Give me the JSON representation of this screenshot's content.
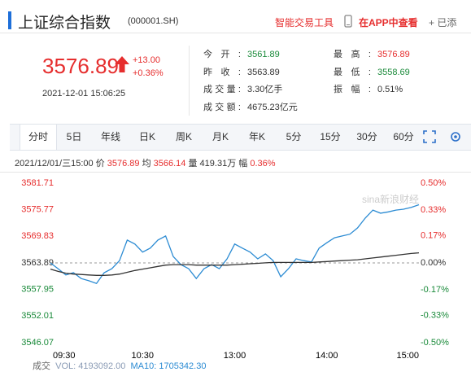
{
  "header": {
    "title": "上证综合指数",
    "code": "(000001.SH)",
    "tools": "智能交易工具",
    "app": "在APP中查看",
    "add": "+ 已添"
  },
  "quote": {
    "price": "3576.89",
    "change": "+13.00",
    "change_pct": "+0.36%",
    "time": "2021-12-01 15:06:25"
  },
  "stats": {
    "left": [
      {
        "label": "今开:",
        "value": "3561.89"
      },
      {
        "label": "昨收:",
        "value": "3563.89"
      },
      {
        "label": "成交量:",
        "value": "3.30亿手"
      },
      {
        "label": "成交额:",
        "value": "4675.23亿元"
      }
    ],
    "right": [
      {
        "label": "最高:",
        "value": "3576.89"
      },
      {
        "label": "最低:",
        "value": "3558.69"
      },
      {
        "label": "振幅:",
        "value": "0.51%"
      }
    ]
  },
  "tabs": [
    "分时",
    "5日",
    "年线",
    "日K",
    "周K",
    "月K",
    "年K",
    "5分",
    "15分",
    "30分",
    "60分"
  ],
  "info": {
    "date": "2021/12/01/三15:00",
    "price_label": "价",
    "price": "3576.89",
    "avg_label": "均",
    "avg": "3566.14",
    "vol_label": "量",
    "vol": "419.31万",
    "pct_label": "幅",
    "pct": "0.36%"
  },
  "chart_data": {
    "type": "line",
    "watermark": "sina新浪财经",
    "categories": [
      "09:30",
      null,
      null,
      null,
      null,
      null,
      null,
      null,
      null,
      null,
      null,
      null,
      "10:30",
      null,
      null,
      null,
      null,
      null,
      null,
      null,
      null,
      null,
      null,
      null,
      "13:00",
      null,
      null,
      null,
      null,
      null,
      null,
      null,
      null,
      null,
      null,
      null,
      "14:00",
      null,
      null,
      null,
      null,
      null,
      null,
      null,
      null,
      null,
      null,
      null,
      "15:00"
    ],
    "series": [
      {
        "color": "#2b8bd3",
        "values": [
          3563.89,
          3562.6,
          3561.2,
          3561.7,
          3560.4,
          3559.9,
          3559.3,
          3561.7,
          3562.6,
          3564.4,
          3569.0,
          3568.1,
          3566.3,
          3567.2,
          3569.0,
          3569.9,
          3565.3,
          3563.5,
          3562.6,
          3560.4,
          3562.6,
          3563.5,
          3562.6,
          3564.8,
          3568.1,
          3567.2,
          3566.3,
          3564.8,
          3565.9,
          3564.4,
          3560.8,
          3562.6,
          3564.8,
          3564.4,
          3564.1,
          3567.2,
          3568.4,
          3569.5,
          3569.9,
          3570.3,
          3571.7,
          3573.9,
          3575.7,
          3575.0,
          3575.3,
          3575.7,
          3575.9,
          3576.3,
          3576.89
        ]
      },
      {
        "color": "#333333",
        "values": [
          3562.5,
          3562.0,
          3561.6,
          3561.4,
          3561.3,
          3561.2,
          3561.1,
          3561.1,
          3561.2,
          3561.4,
          3561.8,
          3562.2,
          3562.5,
          3562.8,
          3563.1,
          3563.4,
          3563.5,
          3563.5,
          3563.5,
          3563.4,
          3563.4,
          3563.4,
          3563.4,
          3563.4,
          3563.5,
          3563.6,
          3563.7,
          3563.8,
          3563.9,
          3564.0,
          3564.0,
          3564.0,
          3564.0,
          3564.0,
          3564.0,
          3564.1,
          3564.2,
          3564.3,
          3564.4,
          3564.5,
          3564.6,
          3564.8,
          3565.0,
          3565.2,
          3565.4,
          3565.6,
          3565.8,
          3566.0,
          3566.14
        ]
      }
    ],
    "ylim": [
      3546.07,
      3581.71
    ],
    "yticks": [
      3581.71,
      3575.77,
      3569.83,
      3563.89,
      3557.95,
      3552.01,
      3546.07
    ],
    "y2lim": [
      -0.5,
      0.5
    ],
    "y2ticks": [
      {
        "value": 0.5,
        "label": "0.50%"
      },
      {
        "value": 0.33,
        "label": "0.33%"
      },
      {
        "value": 0.17,
        "label": "0.17%"
      },
      {
        "value": 0,
        "label": "0.00%"
      },
      {
        "value": -0.17,
        "label": "-0.17%"
      },
      {
        "value": -0.33,
        "label": "-0.33%"
      },
      {
        "value": -0.5,
        "label": "-0.50%"
      }
    ]
  },
  "volume": {
    "label": "成交",
    "vol": "VOL: 4193092.00",
    "ma10": "MA10: 1705342.30"
  }
}
